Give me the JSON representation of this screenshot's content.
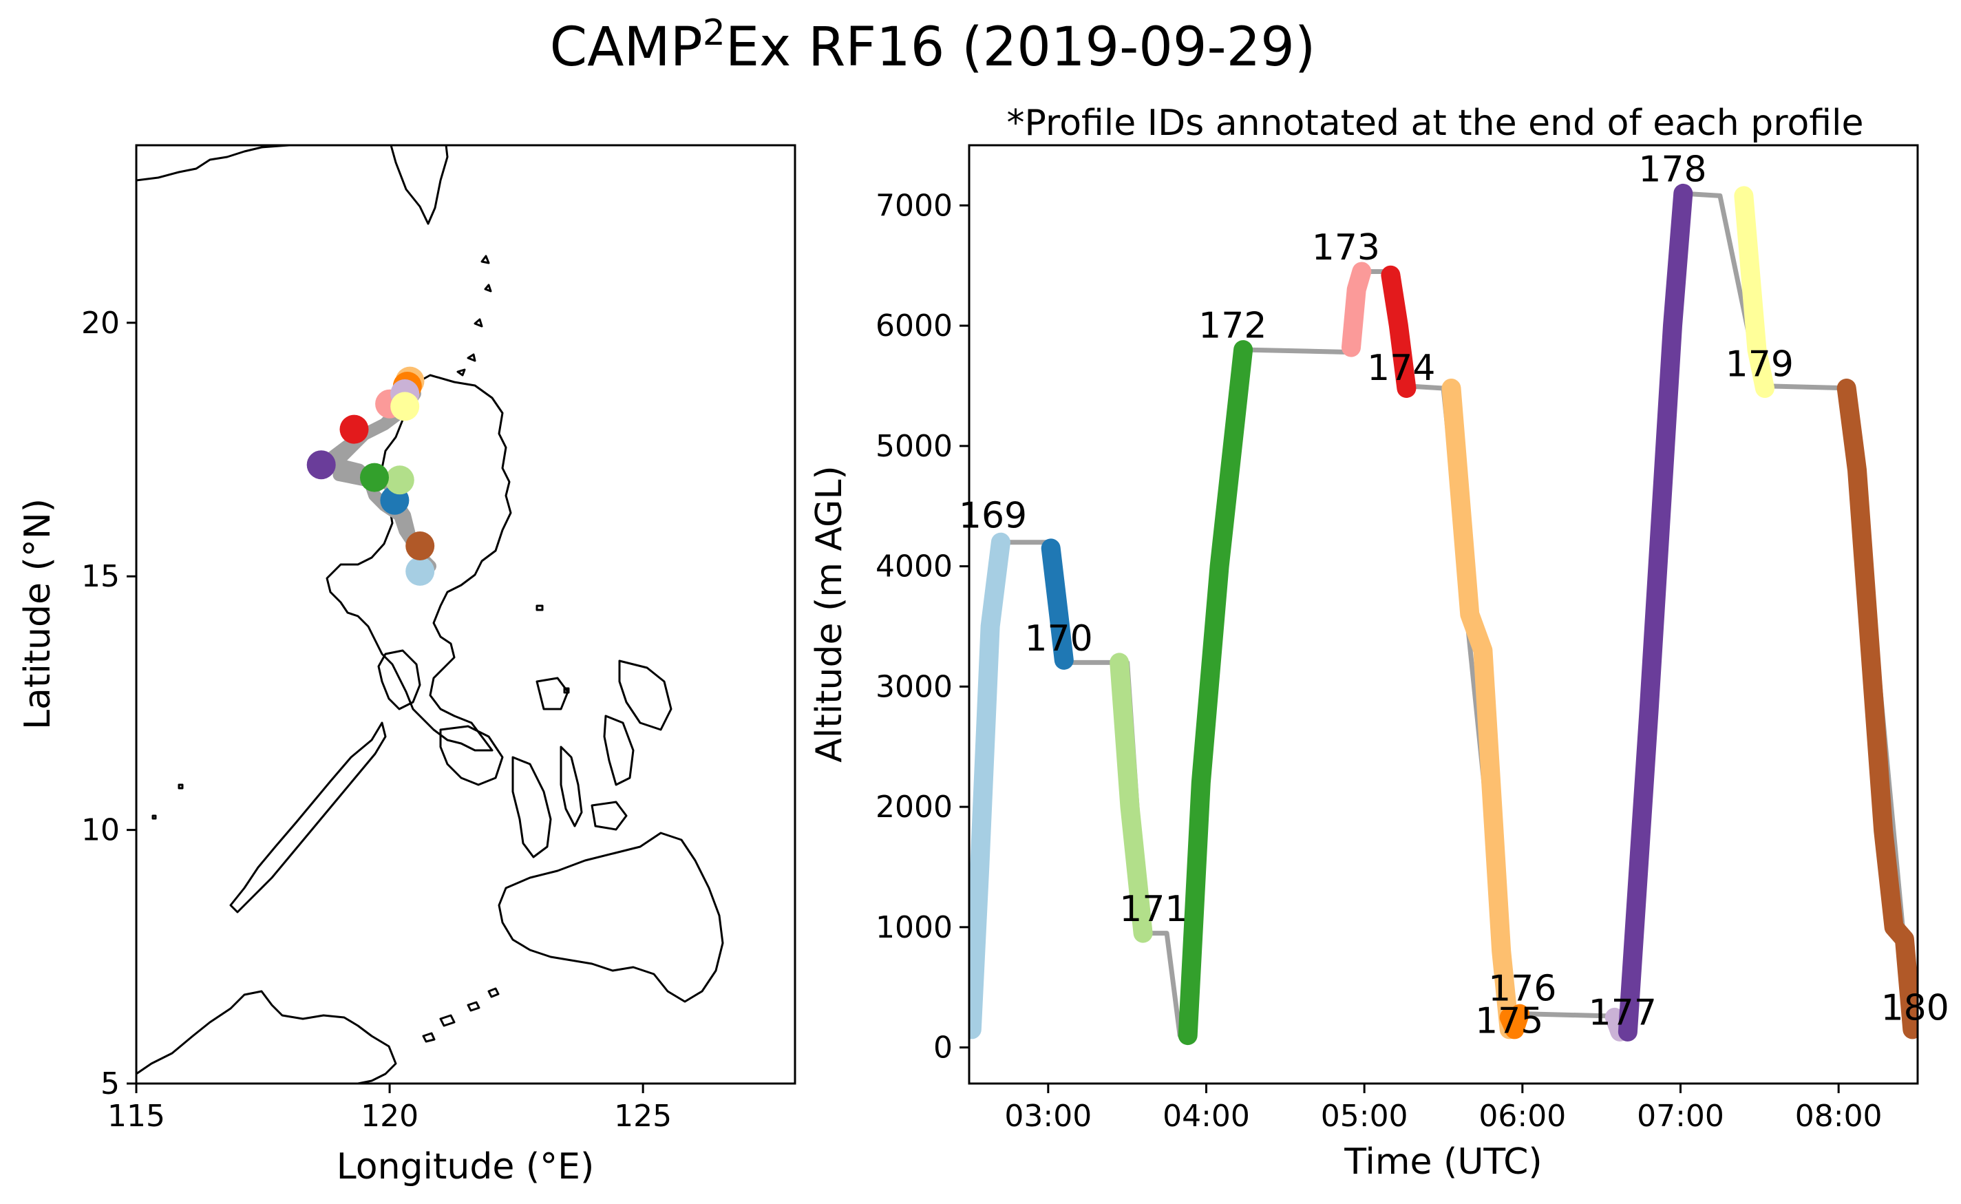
{
  "figure": {
    "title_main": "CAMP",
    "title_sup": "2",
    "title_rest": "Ex RF16 (2019-09-29)"
  },
  "chart_data": [
    {
      "type": "scatter",
      "title": "",
      "xlabel": "Longitude (°E)",
      "ylabel": "Latitude (°N)",
      "xlim": [
        115,
        128
      ],
      "ylim": [
        5,
        23.5
      ],
      "xticks": [
        115,
        120,
        125
      ],
      "yticks": [
        5,
        10,
        15,
        20
      ],
      "grid": false,
      "background": "coastline map of the Philippines",
      "flight_track": [
        [
          120.8,
          15.2
        ],
        [
          120.6,
          15.4
        ],
        [
          120.5,
          15.6
        ],
        [
          120.3,
          15.9
        ],
        [
          120.2,
          16.2
        ],
        [
          119.9,
          16.4
        ],
        [
          119.7,
          16.6
        ],
        [
          119.6,
          16.9
        ],
        [
          119.4,
          17.1
        ],
        [
          119.0,
          17.2
        ],
        [
          118.8,
          17.3
        ],
        [
          119.2,
          17.6
        ],
        [
          119.5,
          17.8
        ],
        [
          119.9,
          18.0
        ],
        [
          120.2,
          18.3
        ],
        [
          120.5,
          18.6
        ],
        [
          120.3,
          18.3
        ],
        [
          119.9,
          18.0
        ],
        [
          119.5,
          17.8
        ],
        [
          119.3,
          17.6
        ],
        [
          119.0,
          17.3
        ],
        [
          119.0,
          17.0
        ],
        [
          119.5,
          16.9
        ],
        [
          119.8,
          16.9
        ],
        [
          120.0,
          16.8
        ],
        [
          120.1,
          16.5
        ],
        [
          120.3,
          16.2
        ],
        [
          120.4,
          15.8
        ],
        [
          120.6,
          15.5
        ]
      ],
      "profile_points": [
        {
          "id": "169",
          "lon": 120.6,
          "lat": 15.1,
          "color": "#a6cee3"
        },
        {
          "id": "170",
          "lon": 120.1,
          "lat": 16.5,
          "color": "#1f78b4"
        },
        {
          "id": "171",
          "lon": 120.2,
          "lat": 16.9,
          "color": "#b2df8a"
        },
        {
          "id": "172",
          "lon": 119.7,
          "lat": 16.95,
          "color": "#33a02c"
        },
        {
          "id": "173",
          "lon": 120.0,
          "lat": 18.4,
          "color": "#fb9a99"
        },
        {
          "id": "174",
          "lon": 119.3,
          "lat": 17.9,
          "color": "#e31a1c"
        },
        {
          "id": "175",
          "lon": 120.4,
          "lat": 18.85,
          "color": "#fdbf6f"
        },
        {
          "id": "176",
          "lon": 120.35,
          "lat": 18.75,
          "color": "#ff7f00"
        },
        {
          "id": "177",
          "lon": 120.3,
          "lat": 18.6,
          "color": "#cab2d6"
        },
        {
          "id": "178",
          "lon": 118.65,
          "lat": 17.2,
          "color": "#6a3d9a"
        },
        {
          "id": "179",
          "lon": 120.3,
          "lat": 18.35,
          "color": "#ffff99"
        },
        {
          "id": "180",
          "lon": 120.6,
          "lat": 15.6,
          "color": "#b15928"
        }
      ]
    },
    {
      "type": "line",
      "title": "*Profile IDs annotated at the end of each profile",
      "xlabel": "Time (UTC)",
      "ylabel": "Altitude (m AGL)",
      "x_unit": "hours UTC",
      "xlim": [
        "02:30",
        "08:30"
      ],
      "xticks": [
        "03:00",
        "04:00",
        "05:00",
        "06:00",
        "07:00",
        "08:00"
      ],
      "ylim": [
        -300,
        7500
      ],
      "yticks": [
        0,
        1000,
        2000,
        3000,
        4000,
        5000,
        6000,
        7000
      ],
      "grid": false,
      "gray_track": [
        [
          "02:30",
          1500
        ],
        [
          "02:31",
          150
        ],
        [
          "02:35",
          1500
        ],
        [
          "02:40",
          4200
        ],
        [
          "03:00",
          4200
        ],
        [
          "03:05",
          3200
        ],
        [
          "03:30",
          3200
        ],
        [
          "03:37",
          950
        ],
        [
          "03:45",
          950
        ],
        [
          "03:50",
          100
        ],
        [
          "04:15",
          5800
        ],
        [
          "04:55",
          5780
        ],
        [
          "05:00",
          6450
        ],
        [
          "05:10",
          6450
        ],
        [
          "05:15",
          5500
        ],
        [
          "05:30",
          5480
        ],
        [
          "05:55",
          150
        ],
        [
          "06:00",
          280
        ],
        [
          "06:35",
          260
        ],
        [
          "06:40",
          150
        ],
        [
          "07:00",
          7100
        ],
        [
          "07:15",
          7080
        ],
        [
          "07:30",
          5500
        ],
        [
          "08:05",
          5480
        ],
        [
          "08:28",
          150
        ]
      ],
      "profiles": [
        {
          "id": "169",
          "color": "#a6cee3",
          "points": [
            [
              "02:31",
              150
            ],
            [
              "02:34",
              1500
            ],
            [
              "02:38",
              3500
            ],
            [
              "02:42",
              4200
            ]
          ],
          "label_at": [
            "02:39",
            4320
          ]
        },
        {
          "id": "170",
          "color": "#1f78b4",
          "points": [
            [
              "03:01",
              4150
            ],
            [
              "03:04",
              3600
            ],
            [
              "03:06",
              3220
            ]
          ],
          "label_at": [
            "03:04",
            3300
          ]
        },
        {
          "id": "171",
          "color": "#b2df8a",
          "points": [
            [
              "03:27",
              3200
            ],
            [
              "03:31",
              2000
            ],
            [
              "03:36",
              950
            ]
          ],
          "label_at": [
            "03:40",
            1050
          ]
        },
        {
          "id": "172",
          "color": "#33a02c",
          "points": [
            [
              "03:53",
              100
            ],
            [
              "03:58",
              2200
            ],
            [
              "04:05",
              4000
            ],
            [
              "04:14",
              5800
            ]
          ],
          "label_at": [
            "04:10",
            5900
          ]
        },
        {
          "id": "173",
          "color": "#fb9a99",
          "points": [
            [
              "04:55",
              5820
            ],
            [
              "04:57",
              6300
            ],
            [
              "04:59",
              6450
            ]
          ],
          "label_at": [
            "04:53",
            6550
          ]
        },
        {
          "id": "174",
          "color": "#e31a1c",
          "points": [
            [
              "05:10",
              6420
            ],
            [
              "05:13",
              6000
            ],
            [
              "05:16",
              5480
            ]
          ],
          "label_at": [
            "05:14",
            5550
          ]
        },
        {
          "id": "175",
          "color": "#fdbf6f",
          "points": [
            [
              "05:33",
              5480
            ],
            [
              "05:40",
              3600
            ],
            [
              "05:45",
              3300
            ],
            [
              "05:52",
              800
            ],
            [
              "05:55",
              150
            ]
          ],
          "label_at": [
            "05:55",
            120
          ]
        },
        {
          "id": "176",
          "color": "#ff7f00",
          "points": [
            [
              "05:55",
              250
            ],
            [
              "05:57",
              150
            ],
            [
              "05:59",
              280
            ]
          ],
          "label_at": [
            "06:00",
            390
          ]
        },
        {
          "id": "177",
          "color": "#cab2d6",
          "points": [
            [
              "06:35",
              250
            ],
            [
              "06:37",
              130
            ]
          ],
          "label_at": [
            "06:38",
            190
          ]
        },
        {
          "id": "178",
          "color": "#6a3d9a",
          "points": [
            [
              "06:40",
              130
            ],
            [
              "06:48",
              2800
            ],
            [
              "06:57",
              6000
            ],
            [
              "07:01",
              7100
            ]
          ],
          "label_at": [
            "06:57",
            7200
          ]
        },
        {
          "id": "179",
          "color": "#ffff99",
          "points": [
            [
              "07:24",
              7080
            ],
            [
              "07:29",
              5800
            ],
            [
              "07:32",
              5480
            ]
          ],
          "label_at": [
            "07:30",
            5580
          ]
        },
        {
          "id": "180",
          "color": "#b15928",
          "points": [
            [
              "08:03",
              5480
            ],
            [
              "08:07",
              4800
            ],
            [
              "08:17",
              1800
            ],
            [
              "08:21",
              1000
            ],
            [
              "08:25",
              900
            ],
            [
              "08:28",
              150
            ]
          ],
          "label_at": [
            "08:29",
            230
          ]
        }
      ]
    }
  ]
}
